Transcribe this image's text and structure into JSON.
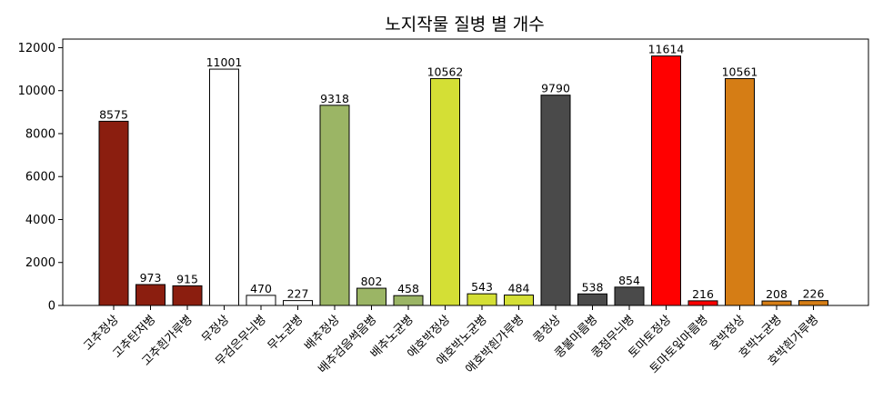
{
  "chart_data": {
    "type": "bar",
    "title": "노지작물 질병 별 개수",
    "xlabel": "",
    "ylabel": "",
    "ylim": [
      0,
      12400
    ],
    "yticks": [
      0,
      2000,
      4000,
      6000,
      8000,
      10000,
      12000
    ],
    "grid": false,
    "categories": [
      "고추정상",
      "고추탄저병",
      "고추흰가루병",
      "무정상",
      "무검은무늬병",
      "무노균병",
      "배추정상",
      "배추검음썩음병",
      "배추노균병",
      "애호박정상",
      "애호박노균병",
      "애호박흰가루병",
      "콩정상",
      "콩불마름병",
      "콩점무늬병",
      "토마토정상",
      "토마토잎마름병",
      "호박정상",
      "호박노균병",
      "호박흰가루병"
    ],
    "values": [
      8575,
      973,
      915,
      11001,
      470,
      227,
      9318,
      802,
      458,
      10562,
      543,
      484,
      9790,
      538,
      854,
      11614,
      216,
      10561,
      208,
      226
    ],
    "colors": [
      "#8b1e0f",
      "#8b1e0f",
      "#8b1e0f",
      "#ffffff",
      "#ffffff",
      "#ffffff",
      "#9bb565",
      "#9bb565",
      "#9bb565",
      "#d4df35",
      "#d4df35",
      "#d4df35",
      "#4a4a4a",
      "#4a4a4a",
      "#4a4a4a",
      "#ff0000",
      "#ff0000",
      "#d57d15",
      "#d57d15",
      "#d57d15"
    ]
  }
}
